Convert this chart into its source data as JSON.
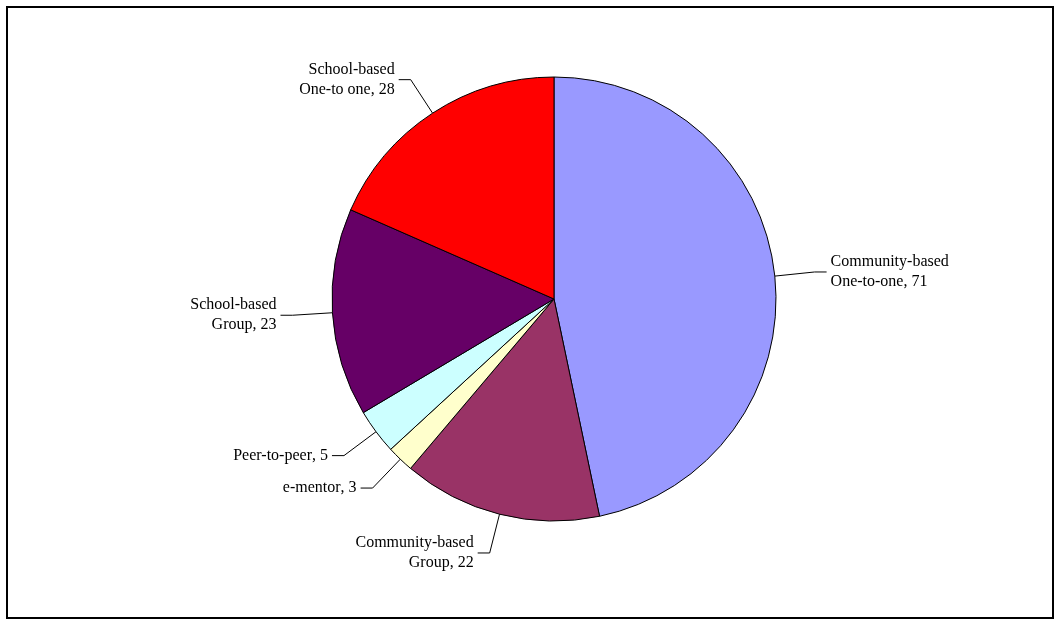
{
  "chart_data": {
    "type": "pie",
    "categories": [
      "Community-based One-to-one",
      "Community-based Group",
      "e-mentor",
      "Peer-to-peer",
      "School-based Group",
      "School-based One-to one"
    ],
    "values": [
      71,
      22,
      3,
      5,
      23,
      28
    ],
    "colors": [
      "#9999ff",
      "#993366",
      "#ffffcc",
      "#ccffff",
      "#660066",
      "#ff0000"
    ],
    "value_labels": [
      ", 71",
      ", 22",
      ", 3",
      ", 5",
      ", 23",
      ", 28"
    ],
    "legend": false
  }
}
